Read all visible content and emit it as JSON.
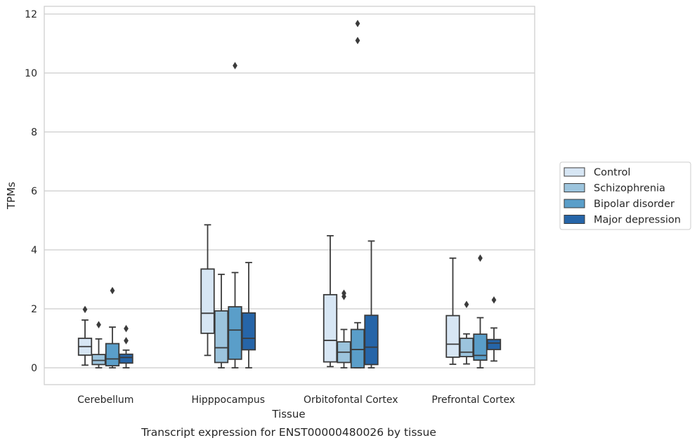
{
  "chart_data": {
    "type": "box",
    "title": "",
    "caption": "Transcript expression for ENST00000480026 by tissue",
    "xlabel": "Tissue",
    "ylabel": "TPMs",
    "ylim": [
      -0.55,
      12.25
    ],
    "yticks": [
      0,
      2,
      4,
      6,
      8,
      10,
      12
    ],
    "grid": "horizontal",
    "legend_position": "right",
    "categories": [
      "Cerebellum",
      "Hipppocampus",
      "Orbitofontal Cortex",
      "Prefrontal Cortex"
    ],
    "series": [
      {
        "name": "Control",
        "color": "#d7e6f4",
        "boxes": [
          {
            "whislo": 0.09,
            "q1": 0.43,
            "med": 0.72,
            "q3": 1.0,
            "whishi": 1.62,
            "fliers": [
              1.98
            ]
          },
          {
            "whislo": 0.42,
            "q1": 1.17,
            "med": 1.85,
            "q3": 3.35,
            "whishi": 4.85,
            "fliers": []
          },
          {
            "whislo": 0.04,
            "q1": 0.2,
            "med": 0.93,
            "q3": 2.48,
            "whishi": 4.48,
            "fliers": []
          },
          {
            "whislo": 0.12,
            "q1": 0.36,
            "med": 0.8,
            "q3": 1.77,
            "whishi": 3.72,
            "fliers": []
          }
        ]
      },
      {
        "name": "Schizophrenia",
        "color": "#9cc4dd",
        "boxes": [
          {
            "whislo": 0.0,
            "q1": 0.11,
            "med": 0.25,
            "q3": 0.45,
            "whishi": 0.98,
            "fliers": [
              1.46
            ]
          },
          {
            "whislo": 0.0,
            "q1": 0.18,
            "med": 0.68,
            "q3": 1.93,
            "whishi": 3.17,
            "fliers": []
          },
          {
            "whislo": 0.0,
            "q1": 0.18,
            "med": 0.53,
            "q3": 0.88,
            "whishi": 1.3,
            "fliers": [
              2.42,
              2.53
            ]
          },
          {
            "whislo": 0.13,
            "q1": 0.38,
            "med": 0.53,
            "q3": 1.0,
            "whishi": 1.15,
            "fliers": [
              2.15
            ]
          }
        ]
      },
      {
        "name": "Bipolar disorder",
        "color": "#5a9ec9",
        "boxes": [
          {
            "whislo": 0.0,
            "q1": 0.07,
            "med": 0.3,
            "q3": 0.82,
            "whishi": 1.38,
            "fliers": [
              2.62
            ]
          },
          {
            "whislo": 0.0,
            "q1": 0.29,
            "med": 1.28,
            "q3": 2.07,
            "whishi": 3.23,
            "fliers": [
              10.25
            ]
          },
          {
            "whislo": 0.0,
            "q1": 0.0,
            "med": 0.62,
            "q3": 1.3,
            "whishi": 1.53,
            "fliers": [
              11.1,
              11.68
            ]
          },
          {
            "whislo": 0.0,
            "q1": 0.26,
            "med": 0.42,
            "q3": 1.14,
            "whishi": 1.7,
            "fliers": [
              3.72
            ]
          }
        ]
      },
      {
        "name": "Major depression",
        "color": "#2665a8",
        "boxes": [
          {
            "whislo": 0.0,
            "q1": 0.16,
            "med": 0.35,
            "q3": 0.46,
            "whishi": 0.6,
            "fliers": [
              0.92,
              1.33
            ]
          },
          {
            "whislo": 0.0,
            "q1": 0.61,
            "med": 1.0,
            "q3": 1.86,
            "whishi": 3.57,
            "fliers": []
          },
          {
            "whislo": 0.0,
            "q1": 0.11,
            "med": 0.7,
            "q3": 1.78,
            "whishi": 4.3,
            "fliers": []
          },
          {
            "whislo": 0.23,
            "q1": 0.62,
            "med": 0.84,
            "q3": 0.96,
            "whishi": 1.35,
            "fliers": [
              2.3
            ]
          }
        ]
      }
    ]
  }
}
